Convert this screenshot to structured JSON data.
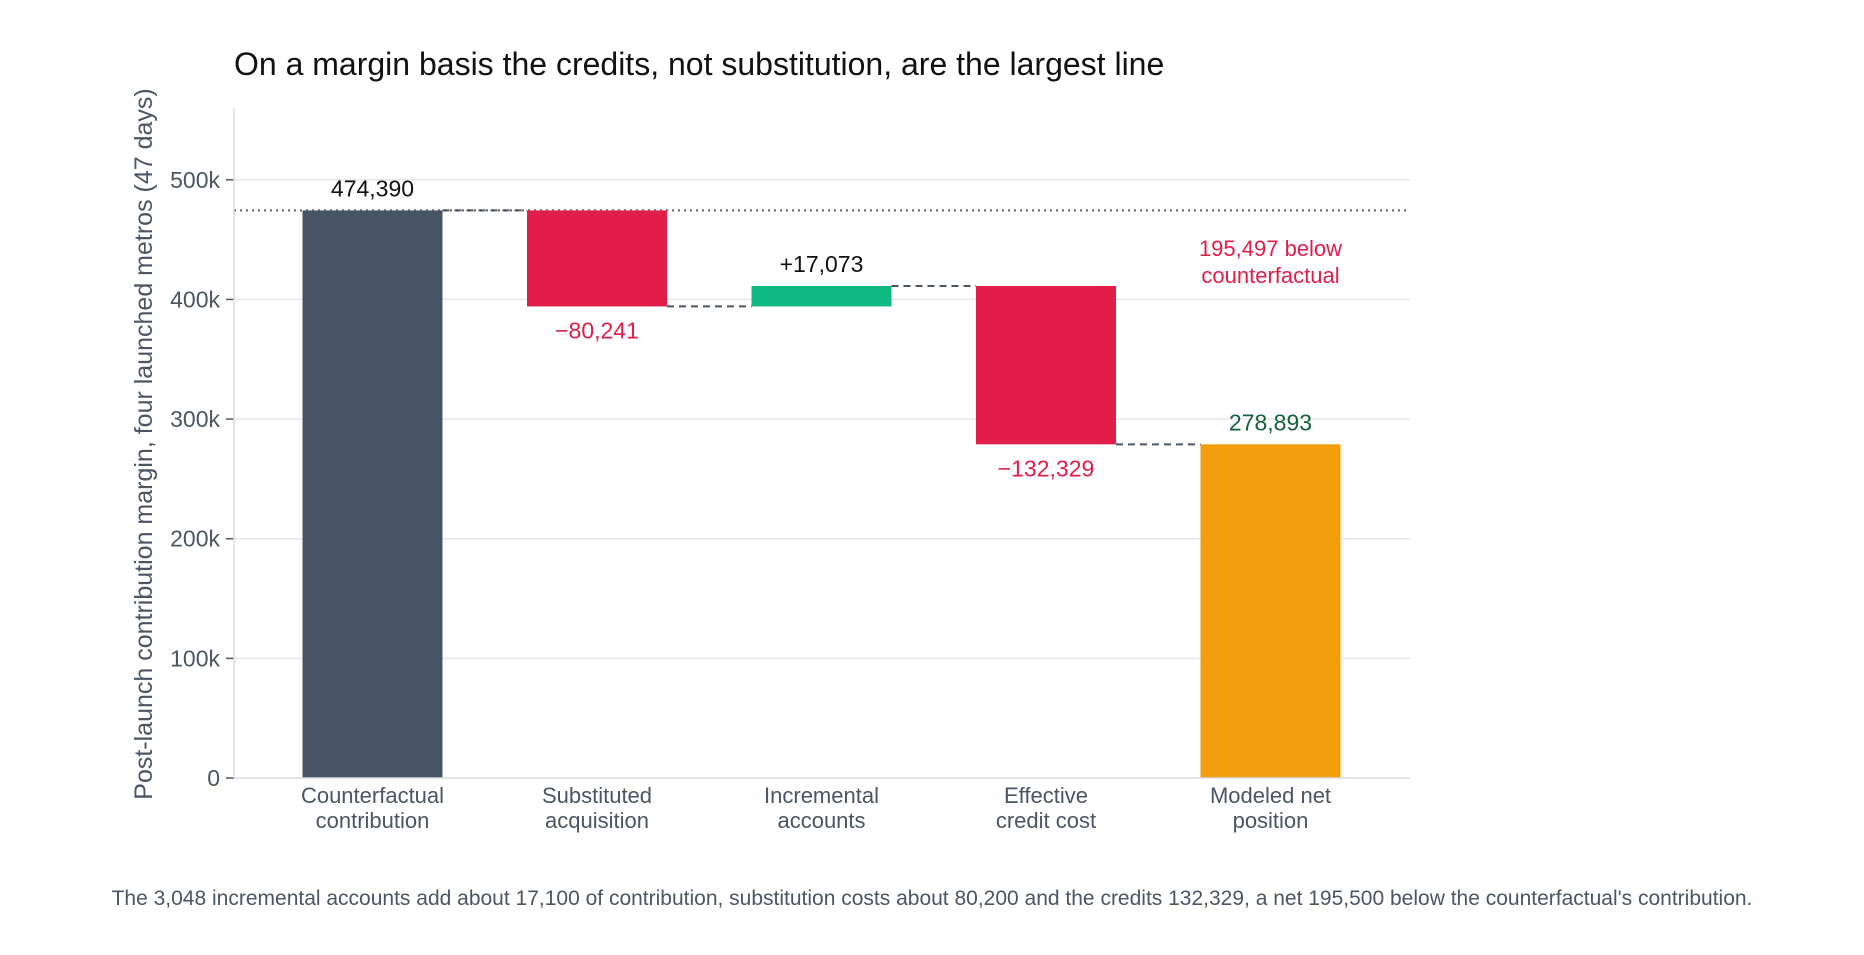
{
  "caption": "The 3,048 incremental accounts add about 17,100 of contribution, substitution costs about 80,200 and the credits 132,329, a net 195,500 below the counterfactual's contribution.",
  "colors": {
    "base": "#475467",
    "negative": "#e11d48",
    "positive": "#10b981",
    "total": "#f29e0c",
    "total_label": "#14613d",
    "grid": "#e5e7eb",
    "axis_text": "#4b5563",
    "title_text": "#111111",
    "connector": "#4b5563",
    "reference": "#7a7a7a"
  },
  "chart_data": {
    "type": "bar",
    "subtype": "waterfall",
    "title": "On a margin basis the credits, not substitution, are the largest line",
    "xlabel": "",
    "ylabel": "Post-launch contribution margin, four launched metros (47 days)",
    "ylim": [
      0,
      560000
    ],
    "yticks": [
      0,
      100000,
      200000,
      300000,
      400000,
      500000
    ],
    "ytick_labels": [
      "0",
      "100k",
      "200k",
      "300k",
      "400k",
      "500k"
    ],
    "grid": true,
    "categories": [
      [
        "Counterfactual",
        "contribution"
      ],
      [
        "Substituted",
        "acquisition"
      ],
      [
        "Incremental",
        "accounts"
      ],
      [
        "Effective",
        "credit cost"
      ],
      [
        "Modeled net",
        "position"
      ]
    ],
    "steps": [
      {
        "kind": "total",
        "value": 474390,
        "label": "474,390",
        "color_key": "base",
        "label_color_key": "title_text"
      },
      {
        "kind": "delta",
        "value": -80241,
        "label": "−80,241",
        "color_key": "negative",
        "label_color_key": "negative"
      },
      {
        "kind": "delta",
        "value": 17073,
        "label": "+17,073",
        "color_key": "positive",
        "label_color_key": "title_text"
      },
      {
        "kind": "delta",
        "value": -132329,
        "label": "−132,329",
        "color_key": "negative",
        "label_color_key": "negative"
      },
      {
        "kind": "total",
        "value": 278893,
        "label": "278,893",
        "color_key": "total",
        "label_color_key": "total_label"
      }
    ],
    "reference_line": {
      "value": 474390,
      "style": "dotted"
    },
    "annotation": {
      "lines": [
        "195,497 below",
        "counterfactual"
      ],
      "color_key": "negative",
      "placement": "right, between 400k and 500k"
    }
  }
}
